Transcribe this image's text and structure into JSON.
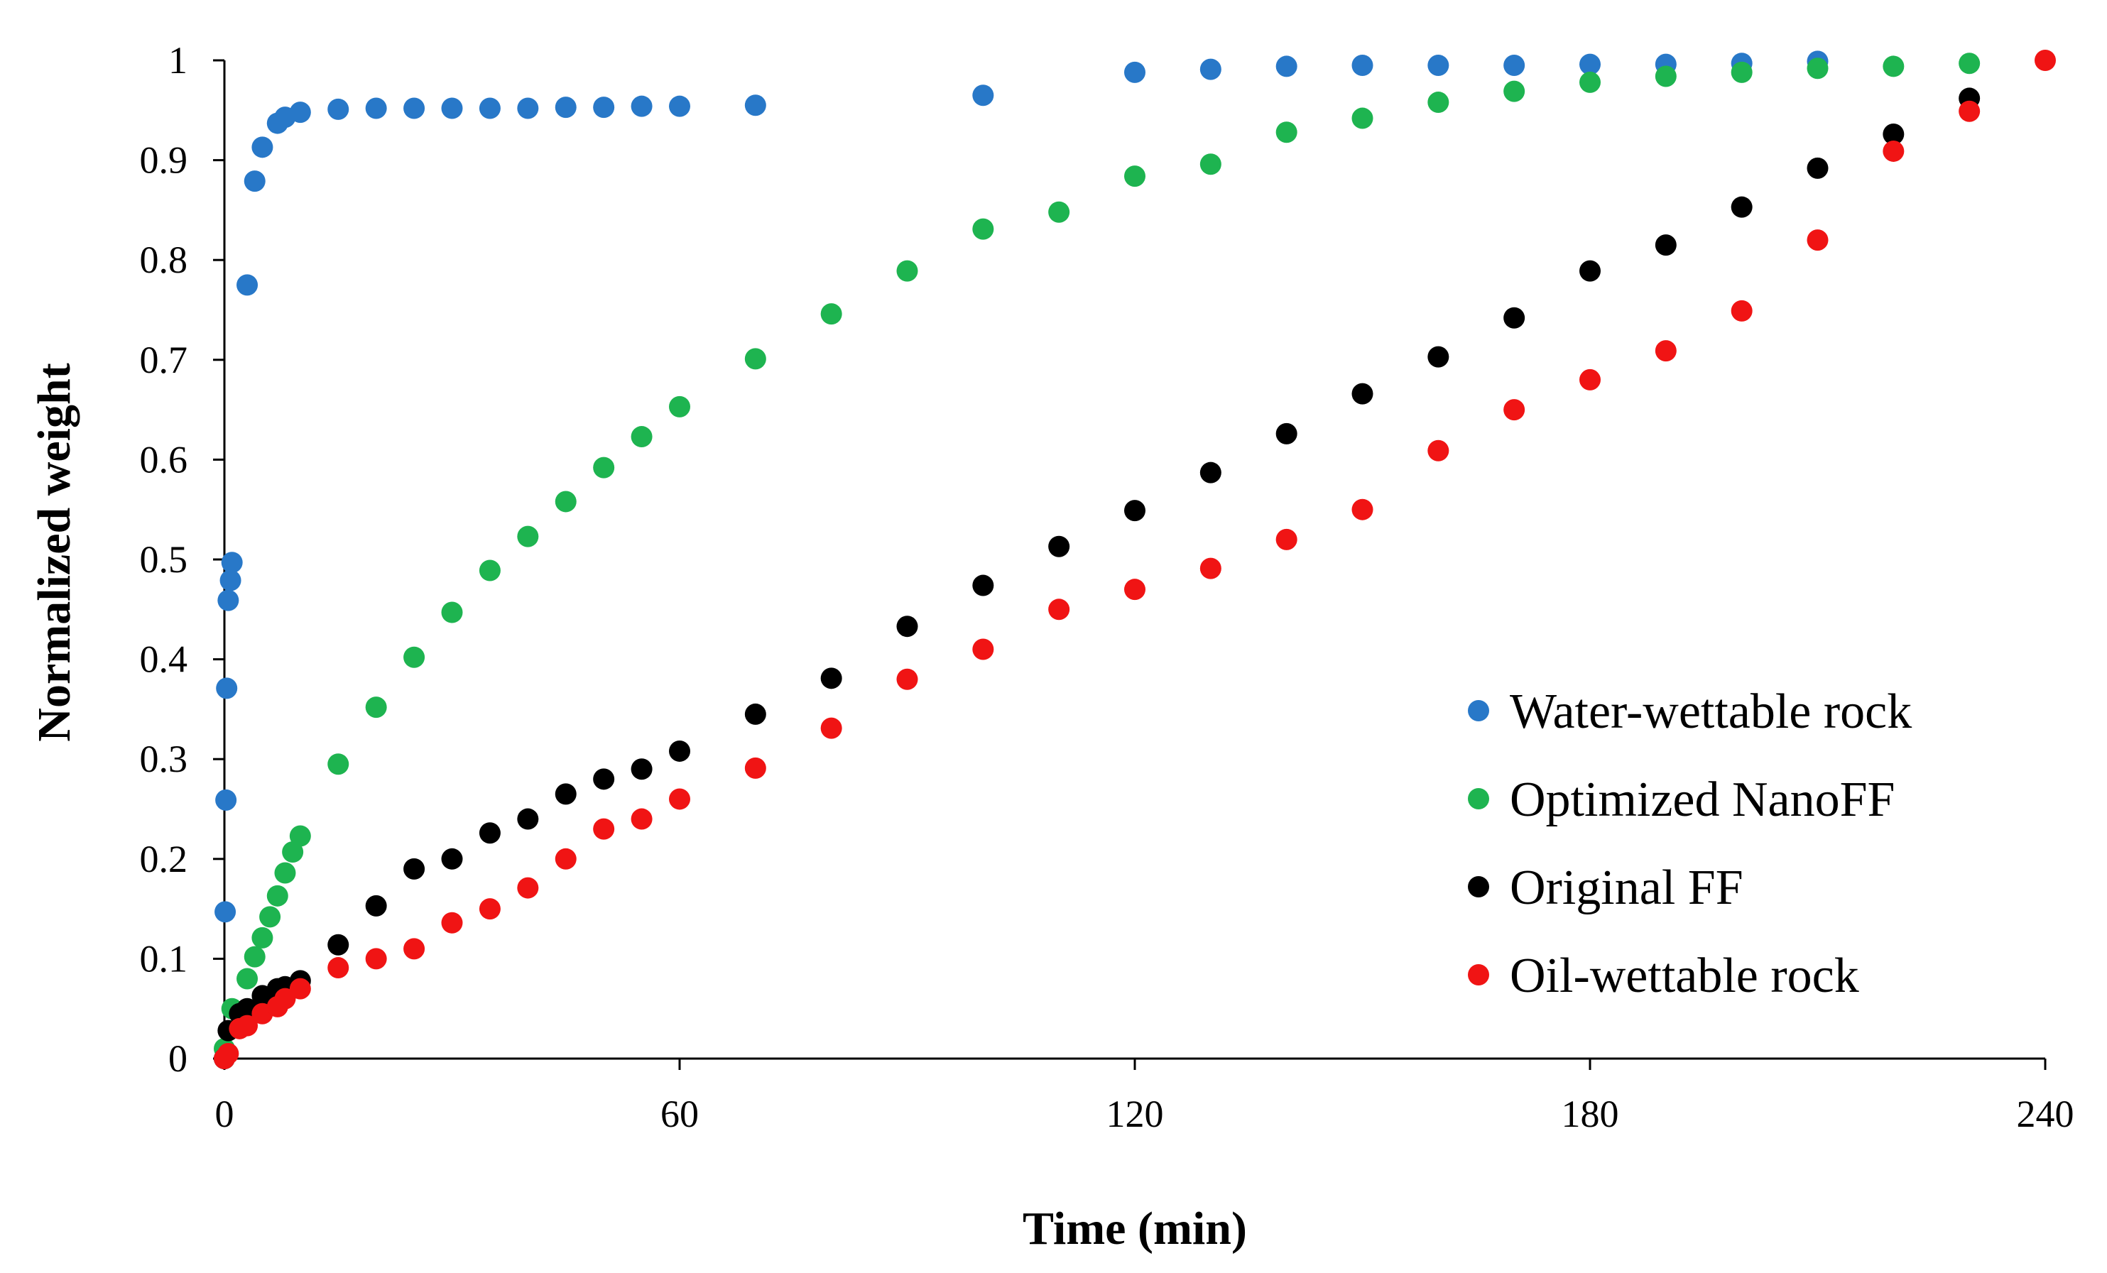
{
  "chart_data": {
    "type": "scatter",
    "title": "",
    "xlabel": "Time (min)",
    "ylabel": "Normalized weight",
    "xlim": [
      0,
      240
    ],
    "ylim": [
      0,
      1
    ],
    "xticks": [
      0,
      60,
      120,
      180,
      240
    ],
    "yticks": [
      0,
      0.1,
      0.2,
      0.3,
      0.4,
      0.5,
      0.6,
      0.7,
      0.8,
      0.9,
      1
    ],
    "ytick_labels": [
      "0",
      "0.1",
      "0.2",
      "0.3",
      "0.4",
      "0.5",
      "0.6",
      "0.7",
      "0.8",
      "0.9",
      "1"
    ],
    "grid": false,
    "legend_position": "bottom-right",
    "series": [
      {
        "name": "Water-wettable rock",
        "color": "#2878c8",
        "x": [
          0,
          0.1,
          0.2,
          0.3,
          0.5,
          0.8,
          1,
          3,
          4,
          5,
          7,
          8,
          10,
          15,
          20,
          25,
          30,
          35,
          40,
          45,
          50,
          55,
          60,
          70,
          100,
          120,
          130,
          140,
          150,
          160,
          170,
          180,
          190,
          200,
          210
        ],
        "y": [
          0,
          0.147,
          0.259,
          0.371,
          0.459,
          0.479,
          0.497,
          0.775,
          0.879,
          0.913,
          0.937,
          0.943,
          0.948,
          0.951,
          0.952,
          0.952,
          0.952,
          0.952,
          0.952,
          0.953,
          0.953,
          0.954,
          0.954,
          0.955,
          0.965,
          0.988,
          0.991,
          0.994,
          0.995,
          0.995,
          0.995,
          0.996,
          0.996,
          0.997,
          0.999
        ]
      },
      {
        "name": "Optimized NanoFF",
        "color": "#1eb450",
        "x": [
          0,
          1,
          3,
          4,
          5,
          6,
          7,
          8,
          9,
          10,
          15,
          20,
          25,
          30,
          35,
          40,
          45,
          50,
          55,
          60,
          70,
          80,
          90,
          100,
          110,
          120,
          130,
          140,
          150,
          160,
          170,
          180,
          190,
          200,
          210,
          220,
          230
        ],
        "y": [
          0.01,
          0.05,
          0.08,
          0.102,
          0.121,
          0.142,
          0.163,
          0.186,
          0.207,
          0.223,
          0.295,
          0.352,
          0.402,
          0.447,
          0.489,
          0.523,
          0.558,
          0.592,
          0.623,
          0.653,
          0.701,
          0.746,
          0.789,
          0.831,
          0.848,
          0.884,
          0.896,
          0.928,
          0.942,
          0.958,
          0.969,
          0.978,
          0.984,
          0.988,
          0.992,
          0.994,
          0.997
        ]
      },
      {
        "name": "Original FF",
        "color": "#000000",
        "x": [
          0,
          0.5,
          2,
          3,
          5,
          7,
          8,
          10,
          15,
          20,
          25,
          30,
          35,
          40,
          45,
          50,
          55,
          60,
          70,
          80,
          90,
          100,
          110,
          120,
          130,
          140,
          150,
          160,
          170,
          180,
          190,
          200,
          210,
          220,
          230
        ],
        "y": [
          0,
          0.028,
          0.045,
          0.05,
          0.063,
          0.07,
          0.072,
          0.078,
          0.114,
          0.153,
          0.19,
          0.2,
          0.226,
          0.24,
          0.265,
          0.28,
          0.29,
          0.308,
          0.345,
          0.381,
          0.433,
          0.474,
          0.513,
          0.549,
          0.587,
          0.626,
          0.666,
          0.703,
          0.742,
          0.789,
          0.815,
          0.853,
          0.892,
          0.926,
          0.962
        ]
      },
      {
        "name": "Oil-wettable rock",
        "color": "#f01414",
        "x": [
          0,
          0.5,
          2,
          3,
          5,
          7,
          8,
          10,
          15,
          20,
          25,
          30,
          35,
          40,
          45,
          50,
          55,
          60,
          70,
          80,
          90,
          100,
          110,
          120,
          130,
          140,
          150,
          160,
          170,
          180,
          190,
          200,
          210,
          220,
          230,
          240
        ],
        "y": [
          0,
          0.005,
          0.03,
          0.033,
          0.045,
          0.052,
          0.06,
          0.07,
          0.091,
          0.1,
          0.11,
          0.136,
          0.15,
          0.171,
          0.2,
          0.23,
          0.24,
          0.26,
          0.291,
          0.331,
          0.38,
          0.41,
          0.45,
          0.47,
          0.491,
          0.52,
          0.55,
          0.609,
          0.65,
          0.68,
          0.709,
          0.749,
          0.82,
          0.909,
          0.949,
          1.0
        ]
      }
    ]
  }
}
